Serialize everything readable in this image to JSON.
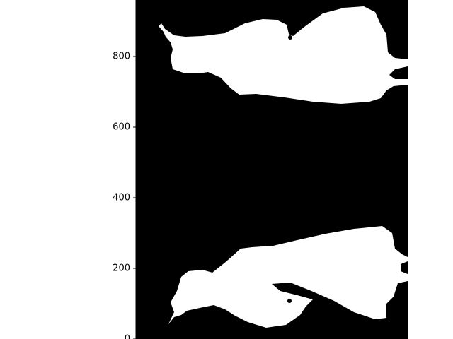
{
  "chart_data": {
    "type": "heatmap",
    "title": "",
    "xlabel": "",
    "ylabel": "",
    "ylim": [
      0,
      960
    ],
    "grid": false,
    "legend": "none",
    "yticks": [
      {
        "value": 0,
        "label": "0"
      },
      {
        "value": 200,
        "label": "200"
      },
      {
        "value": 400,
        "label": "400"
      },
      {
        "value": 600,
        "label": "600"
      },
      {
        "value": 800,
        "label": "800"
      }
    ],
    "colors": {
      "background": "#000000",
      "mask": "#ffffff",
      "axis": "#000000"
    },
    "regions": [
      {
        "name": "upper-white-region",
        "value": 1
      },
      {
        "name": "lower-white-region",
        "value": 1
      }
    ]
  }
}
